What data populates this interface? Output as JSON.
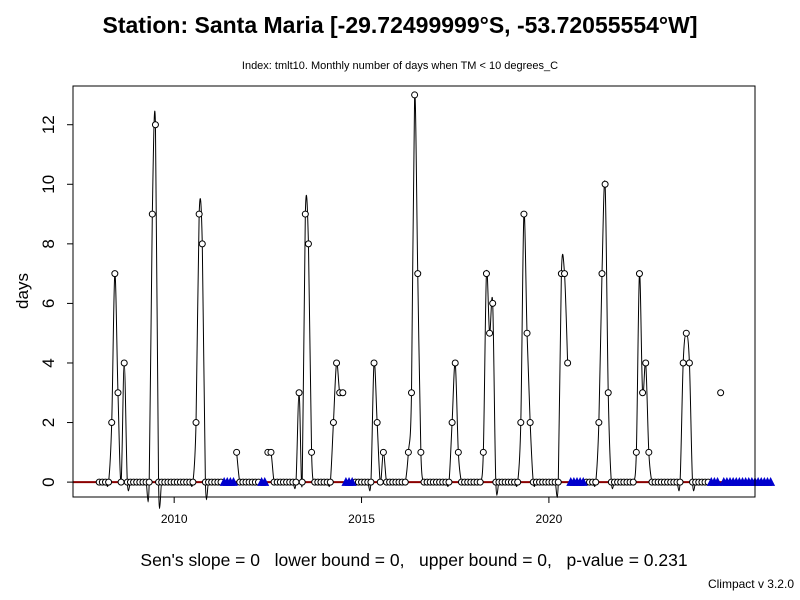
{
  "title": "Station: Santa Maria [-29.72499999°S, -53.72055554°W]",
  "subtitle": "Index: tmlt10. Monthly number of days when TM < 10 degrees_C",
  "stats_text": "Sen's slope = 0   lower bound = 0,   upper bound = 0,   p-value = 0.231",
  "footer": "Climpact v 3.2.0",
  "colors": {
    "line": "#000000",
    "trend": "#8B0000",
    "missing": "#0000CD"
  },
  "chart_data": {
    "type": "line",
    "title": "Station: Santa Maria [-29.72499999°S, -53.72055554°W]",
    "subtitle": "Index: tmlt10. Monthly number of days when TM < 10 degrees_C",
    "xlabel": "",
    "ylabel": "days",
    "x_start": "2008-01",
    "x_ticks": [
      2010,
      2015,
      2020
    ],
    "xlim": [
      2007.3,
      2025.5
    ],
    "ylim": [
      -0.5,
      13.3
    ],
    "y_ticks": [
      0,
      2,
      4,
      6,
      8,
      10,
      12
    ],
    "grid": false,
    "values": [
      0,
      0,
      0,
      0,
      2,
      7,
      3,
      0,
      4,
      0,
      0,
      0,
      0,
      0,
      0,
      0,
      0,
      9,
      12,
      0,
      0,
      0,
      0,
      0,
      0,
      0,
      0,
      0,
      0,
      0,
      0,
      2,
      9,
      8,
      0,
      0,
      0,
      0,
      0,
      0,
      null,
      null,
      null,
      null,
      1,
      0,
      0,
      0,
      0,
      0,
      0,
      0,
      null,
      null,
      1,
      1,
      0,
      0,
      0,
      0,
      0,
      0,
      0,
      0,
      3,
      0,
      9,
      8,
      1,
      0,
      0,
      0,
      0,
      0,
      0,
      2,
      4,
      3,
      3,
      null,
      null,
      null,
      0,
      0,
      0,
      0,
      0,
      0,
      4,
      2,
      0,
      1,
      0,
      0,
      0,
      0,
      0,
      0,
      0,
      1,
      3,
      13,
      7,
      1,
      0,
      0,
      0,
      0,
      0,
      0,
      0,
      0,
      0,
      2,
      4,
      1,
      0,
      0,
      0,
      0,
      0,
      0,
      0,
      1,
      7,
      5,
      6,
      0,
      0,
      0,
      0,
      0,
      0,
      0,
      0,
      2,
      9,
      5,
      2,
      0,
      0,
      0,
      0,
      0,
      0,
      0,
      0,
      0,
      7,
      7,
      4,
      null,
      null,
      null,
      null,
      null,
      0,
      0,
      0,
      0,
      2,
      7,
      10,
      3,
      0,
      0,
      0,
      0,
      0,
      0,
      0,
      0,
      1,
      7,
      3,
      4,
      1,
      0,
      0,
      0,
      0,
      0,
      0,
      0,
      0,
      0,
      0,
      4,
      5,
      4,
      0,
      0,
      0,
      0,
      0,
      0,
      null,
      null,
      null,
      3,
      null,
      null,
      null,
      null,
      null,
      null,
      null,
      null,
      null,
      null,
      null,
      null,
      null,
      null,
      null,
      null
    ],
    "trend": {
      "slope": 0,
      "intercept": 0
    },
    "sen_slope": 0,
    "lower_bound": 0,
    "upper_bound": 0,
    "p_value": 0.231,
    "missing_marker": "blue triangles at y = 0 for missing months"
  }
}
